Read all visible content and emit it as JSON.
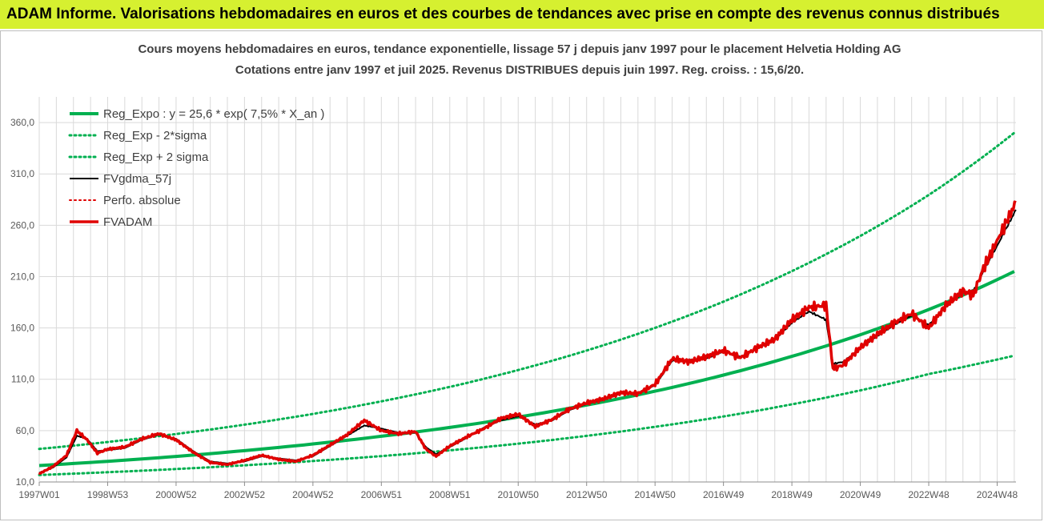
{
  "banner": {
    "text": "ADAM Informe. Valorisations hebdomadaires en euros et des courbes de tendances avec prise en compte des revenus connus distribués",
    "background": "#d6f030"
  },
  "chart_data": {
    "type": "line",
    "title": "Cours moyens hebdomadaires en euros, tendance exponentielle, lissage 57 j depuis janv 1997  pour le placement Helvetia Holding AG",
    "subtitle": "Cotations entre janv 1997 et juil 2025. Revenus DISTRIBUES depuis juin 1997. Reg. croiss. : 15,6/20.",
    "xlabel": "",
    "ylabel": "",
    "x_unit": "year",
    "xlim": [
      1997.0,
      2025.55
    ],
    "ylim": [
      10,
      385
    ],
    "y_ticks": [
      "10,0",
      "60,0",
      "110,0",
      "160,0",
      "210,0",
      "260,0",
      "310,0",
      "360,0"
    ],
    "y_tick_values": [
      10,
      60,
      110,
      160,
      210,
      260,
      310,
      360
    ],
    "x_ticks": [
      "1997W01",
      "1998W53",
      "2000W52",
      "2002W52",
      "2004W52",
      "2006W51",
      "2008W51",
      "2010W50",
      "2012W50",
      "2014W50",
      "2016W49",
      "2018W49",
      "2020W49",
      "2022W48",
      "2024W48"
    ],
    "x_tick_values": [
      1997.0,
      1999.0,
      2001.0,
      2003.0,
      2005.0,
      2007.0,
      2009.0,
      2011.0,
      2013.0,
      2015.0,
      2017.0,
      2019.0,
      2021.0,
      2023.0,
      2025.0
    ],
    "grid": true,
    "legend_position": "top-left",
    "series": [
      {
        "name": "Reg_Expo : y = 25,6 * exp( 7,5% *  X_an )",
        "color": "#00b050",
        "style": "solid",
        "width": 4,
        "x": [
          1997.0,
          1999.0,
          2001.0,
          2003.0,
          2005.0,
          2007.0,
          2009.0,
          2011.0,
          2013.0,
          2015.0,
          2017.0,
          2019.0,
          2021.0,
          2023.0,
          2025.5
        ],
        "y": [
          26.0,
          30.1,
          34.9,
          40.5,
          47.0,
          54.5,
          63.1,
          73.2,
          84.9,
          98.4,
          114.1,
          132.3,
          153.4,
          177.9,
          215.0
        ]
      },
      {
        "name": "Reg_Exp - 2*sigma",
        "color": "#00b050",
        "style": "dotted",
        "width": 3,
        "x": [
          1997.0,
          1999.0,
          2001.0,
          2003.0,
          2005.0,
          2007.0,
          2009.0,
          2011.0,
          2013.0,
          2015.0,
          2017.0,
          2019.0,
          2021.0,
          2023.0,
          2025.5
        ],
        "y": [
          16.8,
          19.5,
          22.6,
          26.2,
          30.4,
          35.2,
          40.8,
          47.3,
          54.9,
          63.7,
          73.8,
          85.6,
          99.2,
          115.1,
          133.0
        ]
      },
      {
        "name": "Reg_Exp + 2 sigma",
        "color": "#00b050",
        "style": "dotted",
        "width": 3,
        "x": [
          1997.0,
          1999.0,
          2001.0,
          2003.0,
          2005.0,
          2007.0,
          2009.0,
          2011.0,
          2013.0,
          2015.0,
          2017.0,
          2019.0,
          2021.0,
          2023.0,
          2025.5
        ],
        "y": [
          42.2,
          48.9,
          56.7,
          65.8,
          76.3,
          88.5,
          102.6,
          119.0,
          138.0,
          160.1,
          185.6,
          215.3,
          249.6,
          289.5,
          350.0
        ]
      },
      {
        "name": "FVgdma_57j",
        "color": "#000000",
        "style": "solid",
        "width": 2,
        "x": [
          1997.0,
          1997.4,
          1997.8,
          1998.1,
          1998.4,
          1998.7,
          1999.0,
          1999.5,
          2000.0,
          2000.5,
          2001.0,
          2001.5,
          2002.0,
          2002.5,
          2003.0,
          2003.5,
          2004.0,
          2004.5,
          2005.0,
          2005.5,
          2006.0,
          2006.5,
          2007.0,
          2007.5,
          2008.0,
          2008.3,
          2008.6,
          2009.0,
          2009.5,
          2010.0,
          2010.5,
          2011.0,
          2011.5,
          2012.0,
          2012.5,
          2013.0,
          2013.5,
          2014.0,
          2014.5,
          2015.0,
          2015.5,
          2016.0,
          2016.5,
          2017.0,
          2017.5,
          2018.0,
          2018.5,
          2019.0,
          2019.5,
          2020.0,
          2020.2,
          2020.5,
          2021.0,
          2021.5,
          2022.0,
          2022.5,
          2023.0,
          2023.5,
          2024.0,
          2024.3,
          2024.6,
          2025.0,
          2025.55
        ],
        "y": [
          19,
          24,
          34,
          55,
          52,
          40,
          41,
          43,
          51,
          56,
          52,
          40,
          30,
          28,
          30,
          35,
          33,
          31,
          35,
          45,
          55,
          65,
          62,
          58,
          58,
          44,
          37,
          44,
          53,
          63,
          70,
          74,
          66,
          70,
          80,
          86,
          90,
          96,
          97,
          104,
          128,
          129,
          130,
          137,
          132,
          140,
          148,
          165,
          176,
          168,
          125,
          127,
          140,
          152,
          163,
          172,
          163,
          180,
          194,
          196,
          215,
          240,
          275
        ]
      },
      {
        "name": "Perfo. absolue",
        "color": "#e00000",
        "style": "dotted",
        "width": 2,
        "x": [
          1997.0,
          1997.4,
          1997.8,
          1998.1,
          1998.4,
          1998.7,
          1999.0,
          1999.5,
          2000.0,
          2000.5,
          2001.0,
          2001.5,
          2002.0,
          2002.5,
          2003.0,
          2003.5,
          2004.0,
          2004.5,
          2005.0,
          2005.5,
          2006.0,
          2006.5,
          2007.0,
          2007.5,
          2008.0,
          2008.3,
          2008.6,
          2009.0,
          2009.5,
          2010.0,
          2010.5,
          2011.0,
          2011.5,
          2012.0,
          2012.5,
          2013.0,
          2013.5,
          2014.0,
          2014.5,
          2015.0,
          2015.5,
          2016.0,
          2016.5,
          2017.0,
          2017.5,
          2018.0,
          2018.5,
          2019.0,
          2019.5,
          2020.0,
          2020.2,
          2020.5,
          2021.0,
          2021.5,
          2022.0,
          2022.5,
          2023.0,
          2023.5,
          2024.0,
          2024.3,
          2024.6,
          2025.0,
          2025.55
        ],
        "y": [
          18,
          25,
          36,
          60,
          51,
          38,
          42,
          44,
          52,
          57,
          51,
          39,
          29,
          27,
          31,
          36,
          32,
          30,
          36,
          46,
          56,
          70,
          60,
          57,
          59,
          42,
          35,
          45,
          54,
          62,
          72,
          76,
          64,
          71,
          81,
          87,
          91,
          97,
          96,
          105,
          130,
          127,
          132,
          138,
          131,
          141,
          149,
          168,
          180,
          182,
          120,
          124,
          141,
          154,
          165,
          174,
          160,
          182,
          196,
          192,
          218,
          245,
          282
        ]
      },
      {
        "name": "FVADAM",
        "color": "#e00000",
        "style": "solid",
        "width": 3.5,
        "x": [
          1997.0,
          1997.4,
          1997.8,
          1998.1,
          1998.4,
          1998.7,
          1999.0,
          1999.5,
          2000.0,
          2000.5,
          2001.0,
          2001.5,
          2002.0,
          2002.5,
          2003.0,
          2003.5,
          2004.0,
          2004.5,
          2005.0,
          2005.5,
          2006.0,
          2006.5,
          2007.0,
          2007.5,
          2008.0,
          2008.3,
          2008.6,
          2009.0,
          2009.5,
          2010.0,
          2010.5,
          2011.0,
          2011.5,
          2012.0,
          2012.5,
          2013.0,
          2013.5,
          2014.0,
          2014.5,
          2015.0,
          2015.5,
          2016.0,
          2016.5,
          2017.0,
          2017.5,
          2018.0,
          2018.5,
          2019.0,
          2019.5,
          2020.0,
          2020.2,
          2020.5,
          2021.0,
          2021.5,
          2022.0,
          2022.5,
          2023.0,
          2023.5,
          2024.0,
          2024.3,
          2024.6,
          2025.0,
          2025.55
        ],
        "y": [
          18,
          25,
          36,
          60,
          51,
          38,
          42,
          44,
          52,
          57,
          51,
          39,
          29,
          27,
          31,
          36,
          32,
          30,
          36,
          46,
          56,
          70,
          60,
          57,
          59,
          42,
          35,
          45,
          54,
          62,
          72,
          76,
          64,
          71,
          81,
          87,
          91,
          97,
          96,
          105,
          130,
          127,
          132,
          138,
          131,
          141,
          149,
          168,
          180,
          182,
          120,
          124,
          141,
          154,
          165,
          174,
          160,
          182,
          196,
          192,
          218,
          245,
          282
        ]
      }
    ]
  }
}
